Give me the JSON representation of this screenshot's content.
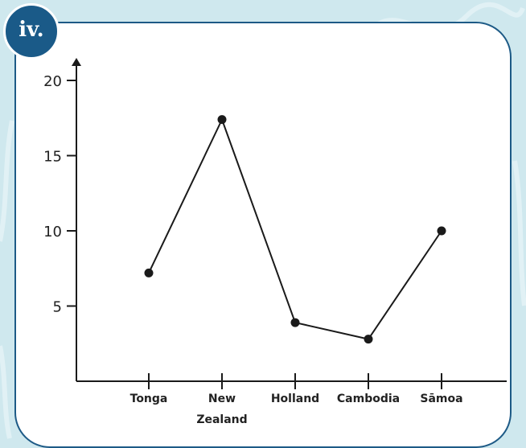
{
  "badge": {
    "label": "iv."
  },
  "colors": {
    "background": "#cfe8ee",
    "card_border": "#1d5a86",
    "badge_fill": "#1a5a88",
    "line": "#1a1a1a"
  },
  "chart_data": {
    "type": "line",
    "categories": [
      "Tonga",
      "New Zealand",
      "Holland",
      "Cambodia",
      "Sāmoa"
    ],
    "category_lines": [
      [
        "Tonga"
      ],
      [
        "New",
        "Zealand"
      ],
      [
        "Holland"
      ],
      [
        "Cambodia"
      ],
      [
        "Sāmoa"
      ]
    ],
    "values": [
      7.2,
      17.4,
      3.9,
      2.8,
      10
    ],
    "title": "",
    "xlabel": "",
    "ylabel": "",
    "ylim": [
      0,
      20
    ],
    "yticks": [
      5,
      10,
      15,
      20
    ],
    "grid": false
  }
}
